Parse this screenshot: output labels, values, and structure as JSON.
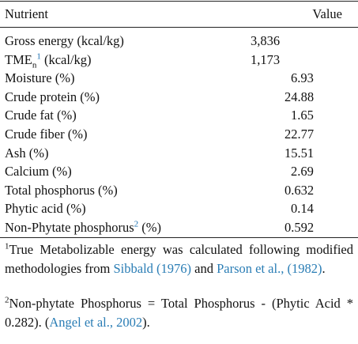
{
  "header": {
    "nutrient": "Nutrient",
    "value": "Value"
  },
  "rows": [
    {
      "name": "Gross energy (kcal/kg)",
      "value": "3,836"
    },
    {
      "name_main": "TME",
      "name_sub": "n",
      "name_sup": "1",
      "name_rest": " (kcal/kg)",
      "value": "1,173"
    },
    {
      "name": "Moisture (%)",
      "value": "6.93"
    },
    {
      "name": "Crude protein (%)",
      "value": "24.88"
    },
    {
      "name": "Crude fat (%)",
      "value": "1.65"
    },
    {
      "name": "Crude fiber (%)",
      "value": "22.77"
    },
    {
      "name": "Ash (%)",
      "value": "15.51"
    },
    {
      "name": "Calcium (%)",
      "value": "2.69"
    },
    {
      "name": "Total phosphorus (%)",
      "value": "0.632"
    },
    {
      "name": "Phytic acid (%)",
      "value": "0.14"
    },
    {
      "name_main": "Non-Phytate phosphorus",
      "name_sup": "2",
      "name_rest": " (%)",
      "value": "0.592"
    }
  ],
  "footnotes": {
    "f1_marker": "1",
    "f1_text_a": "True Metabolizable energy was calculated following modified methodologies from ",
    "f1_link1": "Sibbald (1976)",
    "f1_text_b": " and ",
    "f1_link2": "Parson et al., (1982)",
    "f1_text_c": ".",
    "f2_marker": "2",
    "f2_text_a": "Non-phytate Phosphorus = Total Phosphorus - (Phytic Acid * 0.282). (",
    "f2_link": "Angel et al., 2002",
    "f2_text_b": ")."
  }
}
